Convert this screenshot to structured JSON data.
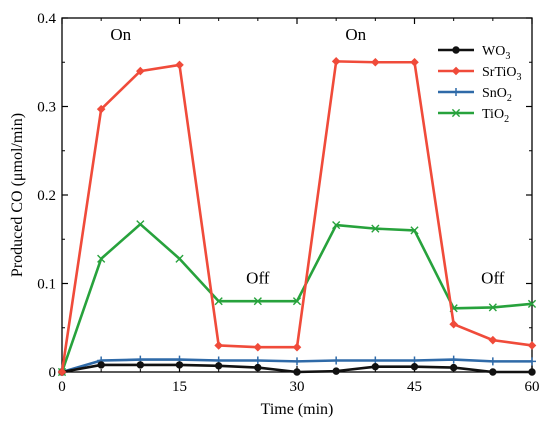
{
  "chart_data": {
    "type": "line",
    "title": "",
    "xlabel": "Time (min)",
    "ylabel": "Produced CO (μmol/min)",
    "xlim": [
      0,
      60
    ],
    "ylim": [
      0,
      0.4
    ],
    "x_ticks": [
      0,
      15,
      30,
      45,
      60
    ],
    "y_ticks": [
      0,
      0.1,
      0.2,
      0.3,
      0.4
    ],
    "y_tick_labels": [
      "0",
      "0.1",
      "0.2",
      "0.3",
      "0.4"
    ],
    "grid": false,
    "legend_position": "top-right",
    "x": [
      0,
      5,
      10,
      15,
      20,
      25,
      30,
      35,
      40,
      45,
      50,
      55,
      60
    ],
    "series": [
      {
        "name": "WO",
        "name_sub": "3",
        "color": "#111111",
        "marker": "circle",
        "values": [
          0,
          0.008,
          0.008,
          0.008,
          0.007,
          0.005,
          0,
          0.001,
          0.006,
          0.006,
          0.005,
          0,
          0
        ]
      },
      {
        "name": "SrTiO",
        "name_sub": "3",
        "color": "#f04b3a",
        "marker": "diamond",
        "values": [
          0,
          0.297,
          0.34,
          0.347,
          0.03,
          0.028,
          0.028,
          0.351,
          0.35,
          0.35,
          0.054,
          0.036,
          0.03
        ]
      },
      {
        "name": "SnO",
        "name_sub": "2",
        "color": "#2f6aa8",
        "marker": "plus",
        "values": [
          0,
          0.013,
          0.014,
          0.014,
          0.013,
          0.013,
          0.012,
          0.013,
          0.013,
          0.013,
          0.014,
          0.012,
          0.012
        ]
      },
      {
        "name": "TiO",
        "name_sub": "2",
        "color": "#27a23c",
        "marker": "x",
        "values": [
          0,
          0.128,
          0.167,
          0.128,
          0.08,
          0.08,
          0.08,
          0.166,
          0.162,
          0.16,
          0.072,
          0.073,
          0.077
        ]
      }
    ],
    "annotations": [
      {
        "text": "On",
        "x": 7.5,
        "y": 0.375
      },
      {
        "text": "On",
        "x": 37.5,
        "y": 0.375
      },
      {
        "text": "Off",
        "x": 25,
        "y": 0.1
      },
      {
        "text": "Off",
        "x": 55,
        "y": 0.1
      }
    ]
  }
}
